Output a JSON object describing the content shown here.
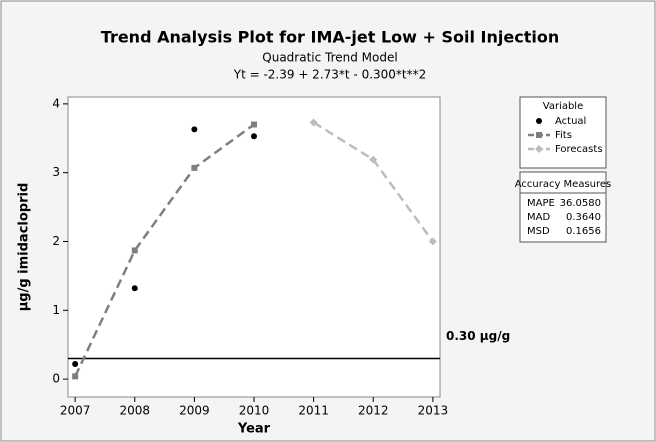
{
  "chart_data": {
    "type": "line",
    "title": "Trend Analysis Plot for IMA-jet Low + Soil Injection",
    "subtitle": [
      "Quadratic Trend Model",
      "Yt = -2.39 + 2.73*t - 0.300*t**2"
    ],
    "x_label": "Year",
    "y_label": "µg/g imidacloprid",
    "xlim": [
      2006.88,
      2013.12
    ],
    "xticks": [
      2007,
      2008,
      2009,
      2010,
      2011,
      2012,
      2013
    ],
    "ylim": [
      -0.26,
      4.1
    ],
    "yticks": [
      0,
      1,
      2,
      3,
      4
    ],
    "legend_title": "Variable",
    "series": [
      {
        "name": "Actual",
        "color": "#000000",
        "style": "points",
        "x": [
          2007,
          2008,
          2009,
          2010
        ],
        "values": [
          0.22,
          1.32,
          3.63,
          3.53
        ]
      },
      {
        "name": "Fits",
        "color": "#7f7f7f",
        "style": "dashed-square",
        "x": [
          2007,
          2008,
          2009,
          2010
        ],
        "values": [
          0.04,
          1.87,
          3.07,
          3.7
        ]
      },
      {
        "name": "Forecasts",
        "color": "#bdbdbd",
        "style": "dashed-diamond",
        "x": [
          2011,
          2012,
          2013
        ],
        "values": [
          3.73,
          3.19,
          2.0
        ]
      }
    ],
    "reference_line": {
      "value": 0.3,
      "label": "0.30 µg/g",
      "color": "#000000"
    },
    "accuracy_measures": {
      "title": "Accuracy Measures",
      "rows": [
        {
          "name": "MAPE",
          "value": "36.0580"
        },
        {
          "name": "MAD",
          "value": "0.3640"
        },
        {
          "name": "MSD",
          "value": "0.1656"
        }
      ]
    }
  }
}
